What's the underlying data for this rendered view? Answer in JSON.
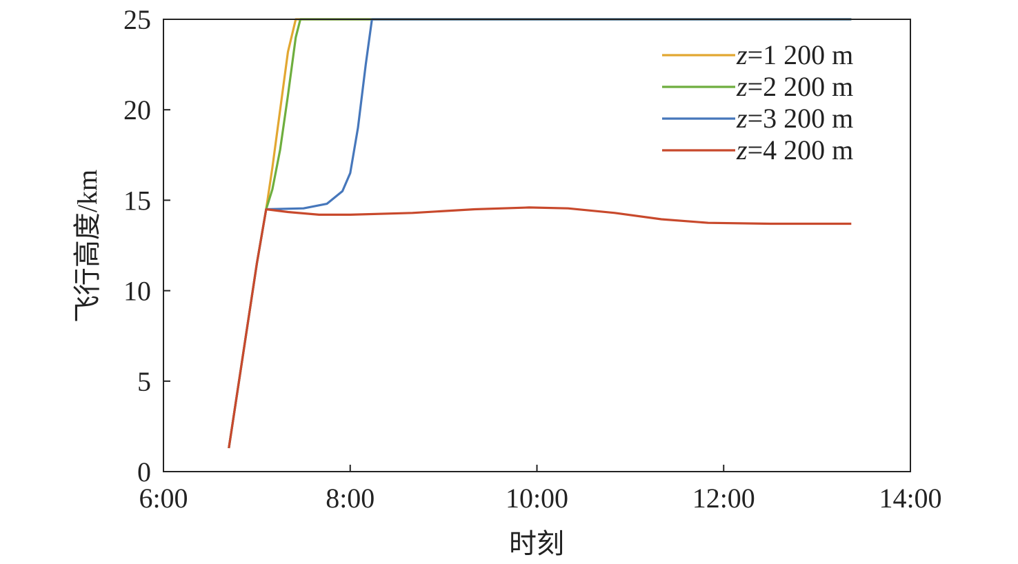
{
  "chart_data": {
    "type": "line",
    "title": "",
    "xlabel": "时刻",
    "ylabel": "飞行高度/km",
    "xlim": [
      "6:00",
      "14:00"
    ],
    "ylim": [
      0,
      25
    ],
    "x_ticks": [
      "6:00",
      "8:00",
      "10:00",
      "12:00",
      "14:00"
    ],
    "y_ticks": [
      0,
      5,
      10,
      15,
      20,
      25
    ],
    "grid": false,
    "legend_position": "top-right",
    "series": [
      {
        "name_var": "z",
        "name_rest": "=1 200 m",
        "color": "#E2A731",
        "points": [
          [
            "6:42",
            1.3
          ],
          [
            "7:00",
            11.5
          ],
          [
            "7:06",
            14.5
          ],
          [
            "7:10",
            16.8
          ],
          [
            "7:15",
            20.0
          ],
          [
            "7:20",
            23.2
          ],
          [
            "7:25",
            25.0
          ],
          [
            "13:22",
            25.0
          ]
        ]
      },
      {
        "name_var": "z",
        "name_rest": "=2 200 m",
        "color": "#6EAE3E",
        "points": [
          [
            "6:42",
            1.3
          ],
          [
            "7:00",
            11.5
          ],
          [
            "7:06",
            14.5
          ],
          [
            "7:10",
            15.6
          ],
          [
            "7:15",
            17.8
          ],
          [
            "7:20",
            20.8
          ],
          [
            "7:25",
            24.0
          ],
          [
            "7:28",
            25.0
          ],
          [
            "13:22",
            25.0
          ]
        ]
      },
      {
        "name_var": "z",
        "name_rest": "=3 200 m",
        "color": "#4677BB",
        "points": [
          [
            "6:42",
            1.3
          ],
          [
            "7:00",
            11.5
          ],
          [
            "7:06",
            14.5
          ],
          [
            "7:30",
            14.55
          ],
          [
            "7:45",
            14.8
          ],
          [
            "7:55",
            15.5
          ],
          [
            "8:00",
            16.5
          ],
          [
            "8:05",
            19.0
          ],
          [
            "8:10",
            22.5
          ],
          [
            "8:14",
            25.0
          ],
          [
            "13:22",
            25.0
          ]
        ]
      },
      {
        "name_var": "z",
        "name_rest": "=4 200 m",
        "color": "#C8492C",
        "points": [
          [
            "6:42",
            1.3
          ],
          [
            "7:00",
            11.5
          ],
          [
            "7:06",
            14.5
          ],
          [
            "7:20",
            14.35
          ],
          [
            "7:40",
            14.2
          ],
          [
            "8:00",
            14.2
          ],
          [
            "8:40",
            14.3
          ],
          [
            "9:20",
            14.5
          ],
          [
            "9:55",
            14.6
          ],
          [
            "10:20",
            14.55
          ],
          [
            "10:50",
            14.3
          ],
          [
            "11:20",
            13.95
          ],
          [
            "11:50",
            13.75
          ],
          [
            "12:30",
            13.7
          ],
          [
            "13:22",
            13.7
          ]
        ]
      }
    ]
  }
}
